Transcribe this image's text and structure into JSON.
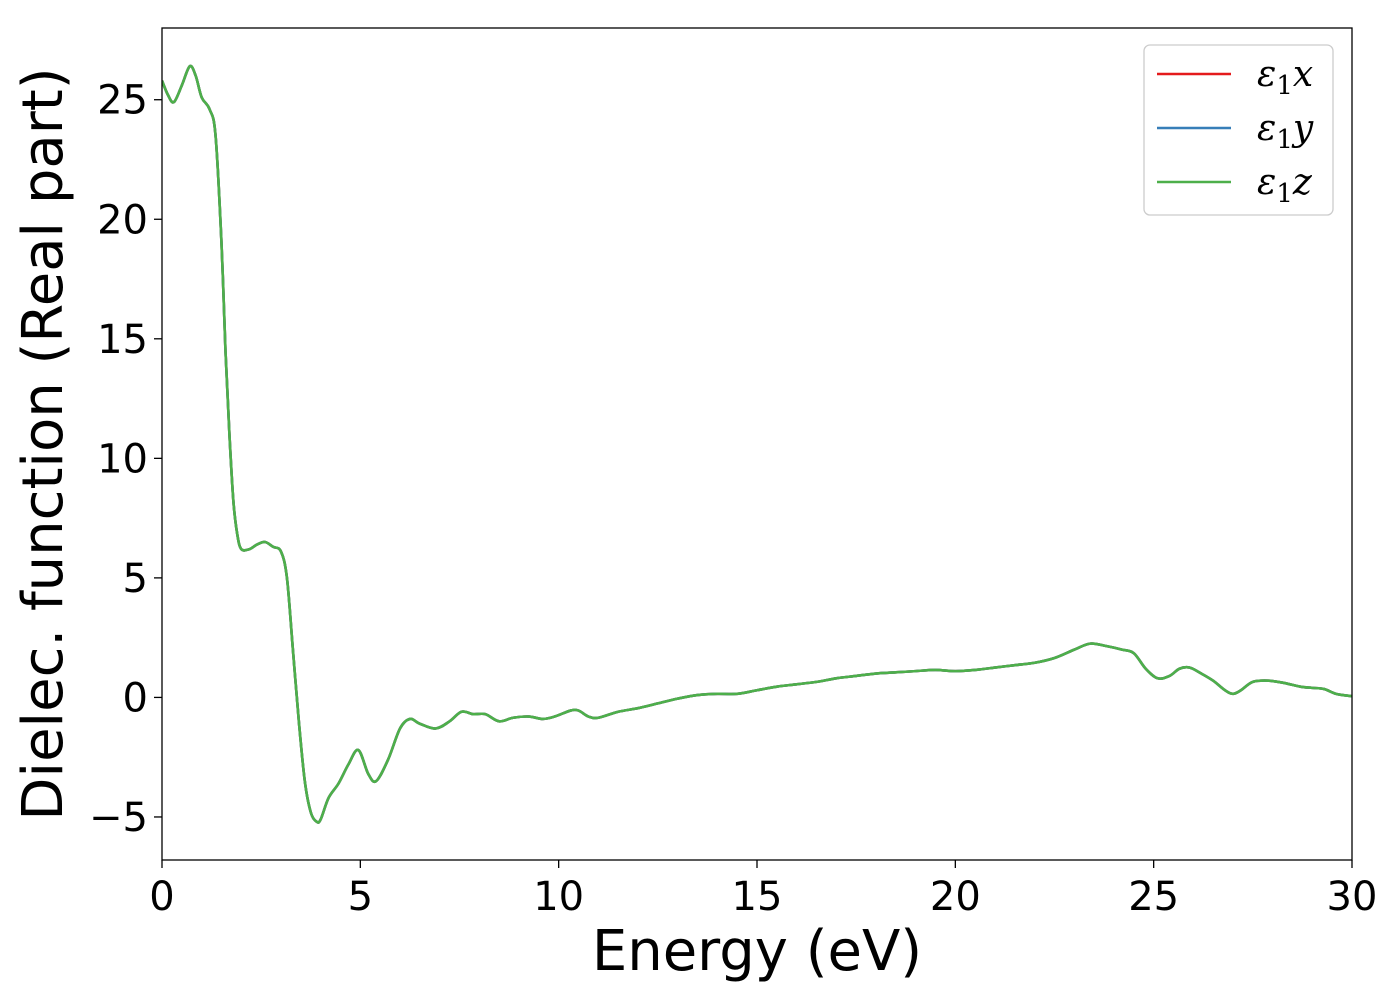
{
  "chart_data": {
    "type": "line",
    "xlabel": "Energy (eV)",
    "ylabel": "Dielec. function (Real part)",
    "xlim": [
      0,
      30
    ],
    "ylim": [
      -6.8,
      28
    ],
    "xticks": [
      0,
      5,
      10,
      15,
      20,
      25,
      30
    ],
    "xtick_labels": [
      "0",
      "5",
      "10",
      "15",
      "20",
      "25",
      "30"
    ],
    "yticks": [
      -5,
      0,
      5,
      10,
      15,
      20,
      25
    ],
    "ytick_labels": [
      "−5",
      "0",
      "5",
      "10",
      "15",
      "20",
      "25"
    ],
    "grid": false,
    "legend": {
      "position": "top-right"
    },
    "series": [
      {
        "name": "ε1x",
        "legend_main": "ε",
        "legend_sub": "1",
        "legend_var": "x",
        "color": "#e41a1c",
        "x": [
          0,
          0.15,
          0.3,
          0.5,
          0.7,
          0.85,
          1.0,
          1.2,
          1.35,
          1.5,
          1.6,
          1.7,
          1.8,
          1.9,
          2.0,
          2.2,
          2.4,
          2.6,
          2.8,
          3.0,
          3.15,
          3.3,
          3.45,
          3.6,
          3.75,
          3.9,
          4.0,
          4.2,
          4.45,
          4.7,
          4.95,
          5.2,
          5.4,
          5.7,
          6.0,
          6.25,
          6.5,
          6.9,
          7.25,
          7.55,
          7.85,
          8.15,
          8.5,
          8.85,
          9.25,
          9.6,
          9.9,
          10.3,
          10.5,
          10.75,
          11.0,
          11.5,
          12.0,
          12.5,
          13.0,
          13.5,
          14.0,
          14.5,
          15.0,
          15.5,
          16.0,
          16.5,
          17.0,
          17.5,
          18.0,
          18.5,
          19.0,
          19.5,
          20.0,
          20.5,
          21.0,
          21.5,
          22.0,
          22.5,
          23.0,
          23.4,
          23.8,
          24.2,
          24.5,
          24.8,
          25.1,
          25.4,
          25.65,
          25.9,
          26.2,
          26.5,
          26.8,
          27.0,
          27.2,
          27.5,
          27.9,
          28.3,
          28.7,
          29.0,
          29.3,
          29.6,
          30.0
        ],
        "y": [
          25.8,
          25.2,
          24.9,
          25.6,
          26.4,
          26.0,
          25.1,
          24.6,
          23.5,
          19.0,
          14.5,
          11.0,
          8.2,
          6.8,
          6.2,
          6.2,
          6.4,
          6.5,
          6.3,
          6.1,
          5.0,
          2.0,
          -1.0,
          -3.5,
          -4.8,
          -5.2,
          -5.1,
          -4.2,
          -3.6,
          -2.8,
          -2.2,
          -3.2,
          -3.5,
          -2.6,
          -1.3,
          -0.9,
          -1.1,
          -1.3,
          -1.0,
          -0.6,
          -0.7,
          -0.7,
          -1.0,
          -0.85,
          -0.8,
          -0.9,
          -0.8,
          -0.55,
          -0.55,
          -0.8,
          -0.85,
          -0.6,
          -0.45,
          -0.25,
          -0.05,
          0.1,
          0.15,
          0.15,
          0.3,
          0.45,
          0.55,
          0.65,
          0.8,
          0.9,
          1.0,
          1.05,
          1.1,
          1.15,
          1.1,
          1.15,
          1.25,
          1.35,
          1.45,
          1.65,
          2.0,
          2.25,
          2.15,
          2.0,
          1.85,
          1.2,
          0.8,
          0.9,
          1.2,
          1.25,
          1.0,
          0.7,
          0.3,
          0.15,
          0.3,
          0.65,
          0.7,
          0.6,
          0.45,
          0.4,
          0.35,
          0.15,
          0.05
        ]
      },
      {
        "name": "ε1y",
        "legend_main": "ε",
        "legend_sub": "1",
        "legend_var": "y",
        "color": "#377eb8",
        "same_as": 0
      },
      {
        "name": "ε1z",
        "legend_main": "ε",
        "legend_sub": "1",
        "legend_var": "z",
        "color": "#4daf4a",
        "same_as": 0
      }
    ]
  }
}
